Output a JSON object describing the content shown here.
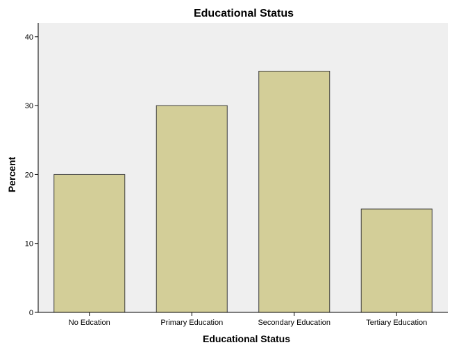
{
  "chart_data": {
    "type": "bar",
    "title": "Educational Status",
    "xlabel": "Educational Status",
    "ylabel": "Percent",
    "categories": [
      "No Edcation",
      "Primary Education",
      "Secondary Education",
      "Tertiary Education"
    ],
    "values": [
      20,
      30,
      35,
      15
    ],
    "ylim": [
      0,
      42
    ],
    "yticks": [
      0,
      10,
      20,
      30,
      40
    ],
    "grid": false,
    "legend": "none"
  },
  "colors": {
    "plot_background": "#efefef",
    "bar_fill": "#d3ce98",
    "bar_stroke": "#3c3c3c",
    "axis": "#000000"
  }
}
